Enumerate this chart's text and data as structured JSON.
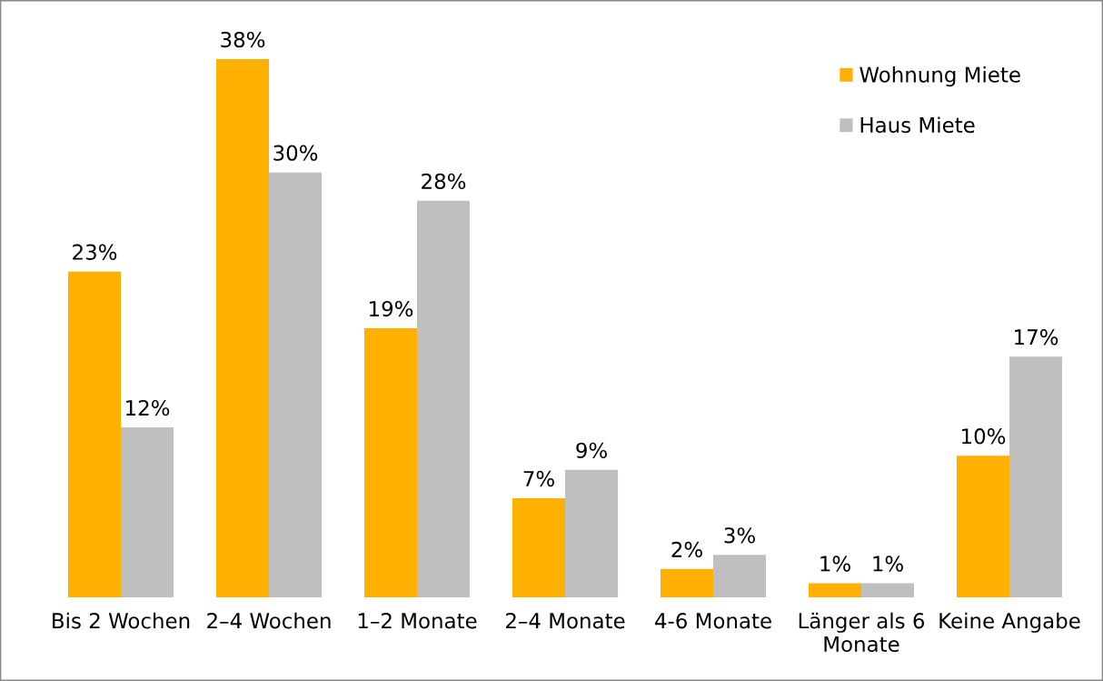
{
  "chart_data": {
    "type": "bar",
    "categories": [
      "Bis 2 Wochen",
      "2–4 Wochen",
      "1–2 Monate",
      "2–4 Monate",
      "4-6 Monate",
      "Länger als 6 Monate",
      "Keine Angabe"
    ],
    "series": [
      {
        "name": "Wohnung Miete",
        "color": "#ffb000",
        "values": [
          23,
          38,
          19,
          7,
          2,
          1,
          10
        ],
        "value_labels": [
          "23%",
          "38%",
          "19%",
          "7%",
          "2%",
          "1%",
          "10%"
        ]
      },
      {
        "name": "Haus Miete",
        "color": "#bfbfbf",
        "values": [
          12,
          30,
          28,
          9,
          3,
          1,
          17
        ],
        "value_labels": [
          "12%",
          "30%",
          "28%",
          "9%",
          "3%",
          "1%",
          "17%"
        ]
      }
    ],
    "legend": "top right",
    "tick_labels": "x"
  }
}
